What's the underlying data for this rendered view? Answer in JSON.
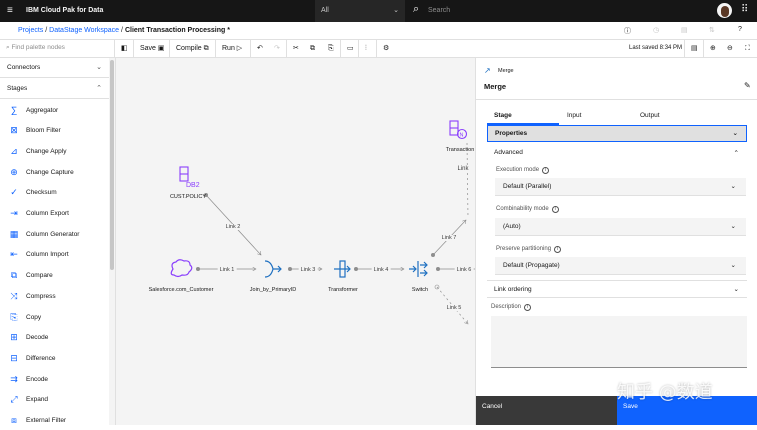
{
  "header": {
    "app_title": "IBM Cloud Pak for Data",
    "scope": "All",
    "search_placeholder": "Search"
  },
  "breadcrumb": {
    "items": [
      "Projects",
      "DataStage Workspace"
    ],
    "current": "Client Transaction Processing *",
    "separator": "/"
  },
  "toolbar": {
    "search_placeholder": "Find palette nodes",
    "save": "Save",
    "compile": "Compile",
    "run": "Run",
    "last_saved": "Last saved 8:34 PM"
  },
  "sidebar": {
    "sections": [
      {
        "label": "Connectors",
        "expanded": false
      },
      {
        "label": "Stages",
        "expanded": true
      }
    ],
    "items": [
      {
        "label": "Aggregator",
        "icon": "sigma-icon",
        "glyph": "∑"
      },
      {
        "label": "Bloom Filter",
        "icon": "bloom-filter-icon",
        "glyph": "⊠"
      },
      {
        "label": "Change Apply",
        "icon": "change-apply-icon",
        "glyph": "⊿"
      },
      {
        "label": "Change Capture",
        "icon": "change-capture-icon",
        "glyph": "⊕"
      },
      {
        "label": "Checksum",
        "icon": "checksum-icon",
        "glyph": "✓"
      },
      {
        "label": "Column Export",
        "icon": "column-export-icon",
        "glyph": "⇥"
      },
      {
        "label": "Column Generator",
        "icon": "column-generator-icon",
        "glyph": "▦"
      },
      {
        "label": "Column Import",
        "icon": "column-import-icon",
        "glyph": "⇤"
      },
      {
        "label": "Compare",
        "icon": "compare-icon",
        "glyph": "⧉"
      },
      {
        "label": "Compress",
        "icon": "compress-icon",
        "glyph": "⤨"
      },
      {
        "label": "Copy",
        "icon": "copy-icon",
        "glyph": "⎘"
      },
      {
        "label": "Decode",
        "icon": "decode-icon",
        "glyph": "⊞"
      },
      {
        "label": "Difference",
        "icon": "difference-icon",
        "glyph": "⊟"
      },
      {
        "label": "Encode",
        "icon": "encode-icon",
        "glyph": "⇉"
      },
      {
        "label": "Expand",
        "icon": "expand-icon",
        "glyph": "⤢"
      },
      {
        "label": "External Filter",
        "icon": "external-filter-icon",
        "glyph": "⧈"
      }
    ]
  },
  "canvas": {
    "nodes": [
      {
        "label": "Salesforce.com_Customer",
        "icon": "salesforce-cloud-icon"
      },
      {
        "label": "Join_by_PrimaryID",
        "icon": "join-icon"
      },
      {
        "label": "Transformer",
        "icon": "transformer-icon"
      },
      {
        "label": "Switch",
        "icon": "switch-icon"
      },
      {
        "label": "CUST.POLICY",
        "icon": "db2-icon",
        "badge": "DB2"
      },
      {
        "label": "Transaction",
        "icon": "netezza-icon",
        "badge": "N"
      }
    ],
    "links": [
      "Link 1",
      "Link 2",
      "Link 3",
      "Link 4",
      "Link 5",
      "Link 6",
      "Link 7",
      "Link"
    ]
  },
  "panel": {
    "breadcrumb": "Merge",
    "title": "Merge",
    "tabs": [
      {
        "label": "Stage",
        "active": true
      },
      {
        "label": "Input"
      },
      {
        "label": "Output"
      }
    ],
    "properties": "Properties",
    "advanced": "Advanced",
    "execution_mode": {
      "label": "Execution mode",
      "value": "Default (Parallel)"
    },
    "combinability_mode": {
      "label": "Combinability mode",
      "value": "(Auto)"
    },
    "preserve_partitioning": {
      "label": "Preserve partitioning",
      "value": "Default (Propagate)"
    },
    "link_ordering": "Link ordering",
    "description": {
      "label": "Description",
      "value": ""
    },
    "cancel": "Cancel",
    "save": "Save"
  },
  "watermark": "知乎 @数道",
  "colors": {
    "accent": "#0f62fe",
    "node_purple": "#8a3ffc",
    "node_teal": "#1f70c1"
  }
}
